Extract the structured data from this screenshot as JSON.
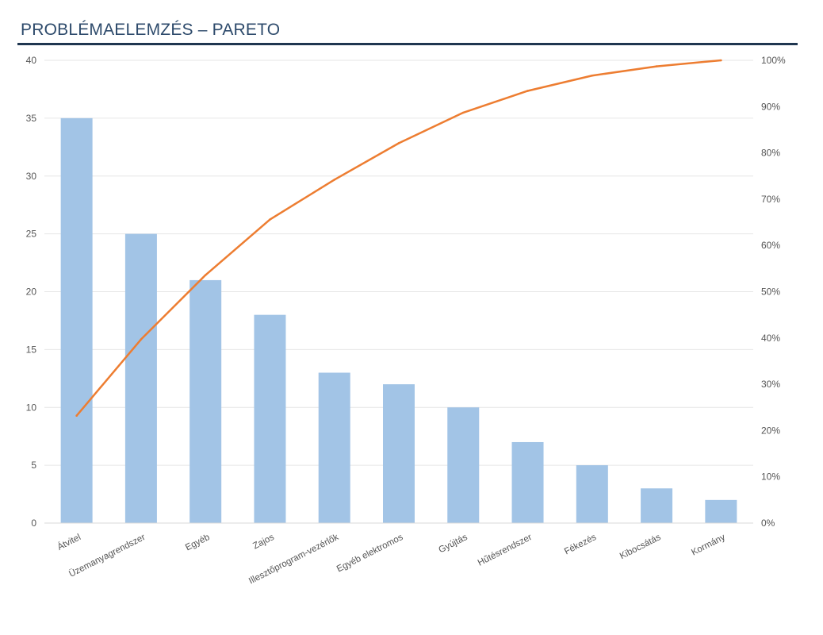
{
  "header": {
    "title": "PROBLÉMAELEMZÉS – PARETO"
  },
  "chart_data": {
    "type": "bar",
    "title": "",
    "xlabel": "",
    "ylabel": "",
    "categories": [
      "Átvitel",
      "Üzemanyagrendszer",
      "Egyéb",
      "Zajos",
      "Illesztőprogram-vezérlők",
      "Egyéb elektromos",
      "Gyújtás",
      "Hűtésrendszer",
      "Fékezés",
      "Kibocsátás",
      "Kormány"
    ],
    "series": [
      {
        "type": "bar",
        "values": [
          35,
          25,
          21,
          18,
          13,
          12,
          10,
          7,
          5,
          3,
          2
        ],
        "color": "#a2c4e6"
      },
      {
        "type": "line",
        "axis": "right",
        "values": [
          23.2,
          39.7,
          53.6,
          65.6,
          74.2,
          82.1,
          88.7,
          93.4,
          96.7,
          98.7,
          100
        ],
        "color": "#ed7d31"
      }
    ],
    "ylim": [
      0,
      40
    ],
    "yticks": [
      "0",
      "5",
      "10",
      "15",
      "20",
      "25",
      "30",
      "35",
      "40"
    ],
    "y2lim": [
      0,
      100
    ],
    "y2ticks": [
      "0%",
      "10%",
      "20%",
      "30%",
      "40%",
      "50%",
      "60%",
      "70%",
      "80%",
      "90%",
      "100%"
    ],
    "grid": true,
    "legend": "none"
  }
}
